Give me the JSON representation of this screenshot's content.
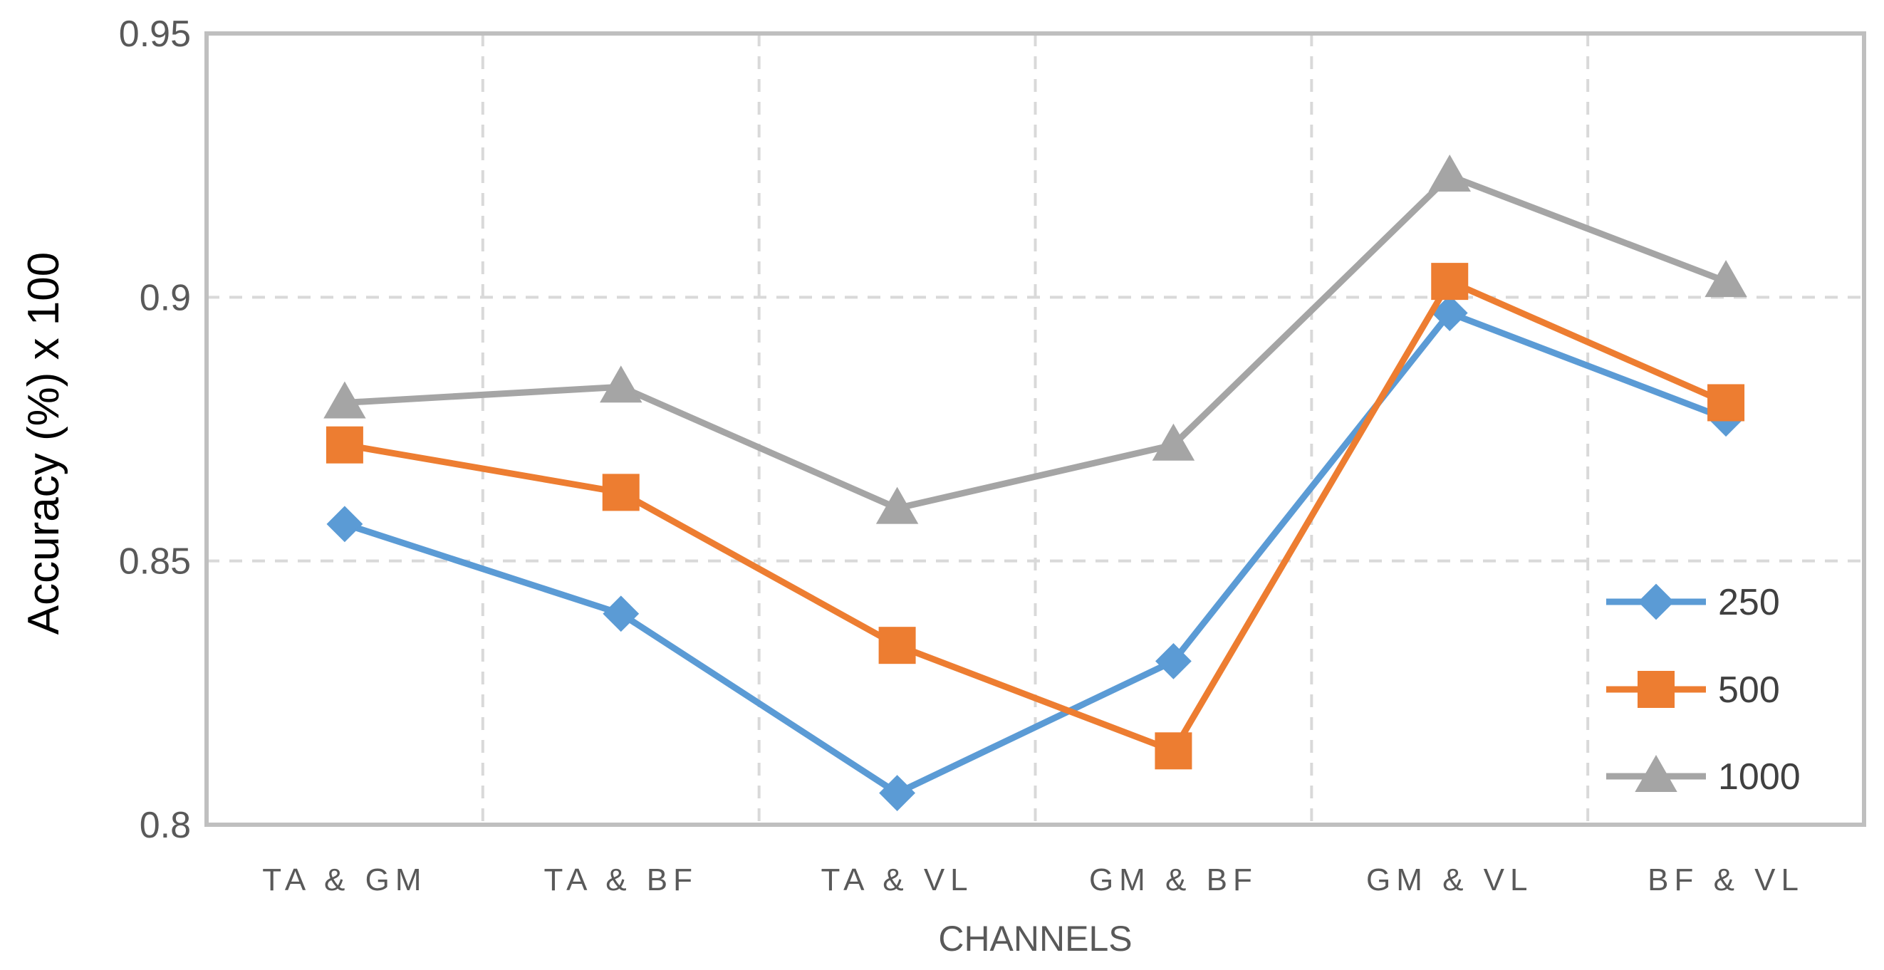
{
  "chart_data": {
    "type": "line",
    "categories": [
      "TA & GM",
      "TA & BF",
      "TA & VL",
      "GM & BF",
      "GM & VL",
      "BF & VL"
    ],
    "xlabel": "CHANNELS",
    "ylabel": "Accuracy (%) x 100",
    "ylim": [
      0.8,
      0.95
    ],
    "yticks": [
      0.8,
      0.85,
      0.9,
      0.95
    ],
    "ytick_labels": [
      "0.8",
      "0.85",
      "0.9",
      "0.95"
    ],
    "grid": true,
    "legend_position": "bottom-right",
    "series": [
      {
        "name": "250",
        "color": "#5B9BD5",
        "marker": "diamond",
        "values": [
          0.857,
          0.84,
          0.806,
          0.831,
          0.897,
          0.877
        ]
      },
      {
        "name": "500",
        "color": "#ED7D31",
        "marker": "square",
        "values": [
          0.872,
          0.863,
          0.834,
          0.814,
          0.903,
          0.88
        ]
      },
      {
        "name": "1000",
        "color": "#A5A5A5",
        "marker": "triangle",
        "values": [
          0.88,
          0.883,
          0.86,
          0.872,
          0.923,
          0.903
        ]
      }
    ]
  }
}
